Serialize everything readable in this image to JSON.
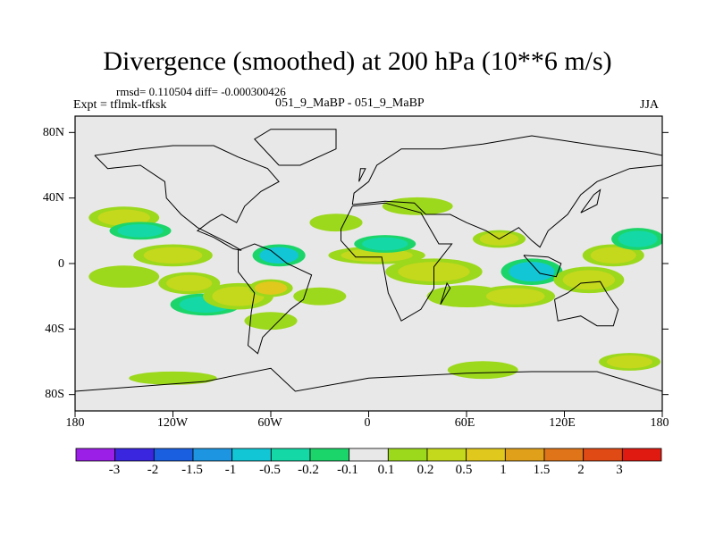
{
  "title": "Divergence (smoothed) at 200 hPa (10**6 m/s)",
  "stats_line": "rmsd= 0.110504  diff= -0.000300426",
  "expt_line": "Expt = tflmk-tfksk",
  "runs_line": "051_9_MaBP - 051_9_MaBP",
  "season": "JJA",
  "map": {
    "projection": "cylindrical equidistant",
    "lon_range": [
      -180,
      180
    ],
    "lat_range": [
      -90,
      90
    ],
    "y_ticks": [
      {
        "value": 80,
        "label": "80N"
      },
      {
        "value": 40,
        "label": "40N"
      },
      {
        "value": 0,
        "label": "0"
      },
      {
        "value": -40,
        "label": "40S"
      },
      {
        "value": -80,
        "label": "80S"
      }
    ],
    "x_ticks": [
      {
        "value": -180,
        "label": "180"
      },
      {
        "value": -120,
        "label": "120W"
      },
      {
        "value": -60,
        "label": "60W"
      },
      {
        "value": 0,
        "label": "0"
      },
      {
        "value": 60,
        "label": "60E"
      },
      {
        "value": 120,
        "label": "120E"
      },
      {
        "value": 180,
        "label": "180"
      }
    ],
    "background_color": "#e8e8e8"
  },
  "colorbar": {
    "colors": [
      "#9b1fe6",
      "#3b26e0",
      "#1a5fe0",
      "#1e95e0",
      "#12c6d6",
      "#14d8a6",
      "#1cd56a",
      "#e8e8e8",
      "#9cd81c",
      "#c4d81c",
      "#e0c81c",
      "#e0a01a",
      "#e07418",
      "#e04a14",
      "#e01a10"
    ],
    "labels": [
      "-3",
      "-2",
      "-1.5",
      "-1",
      "-0.5",
      "-0.2",
      "-0.1",
      "0.1",
      "0.2",
      "0.5",
      "1",
      "1.5",
      "2",
      "3"
    ]
  },
  "chart_data": {
    "type": "heatmap",
    "variable": "Divergence (smoothed) at 200 hPa",
    "units": "10**6 m/s",
    "levels": [
      -3,
      -2,
      -1.5,
      -1,
      -0.5,
      -0.2,
      -0.1,
      0.1,
      0.2,
      0.5,
      1,
      1.5,
      2,
      3
    ],
    "features": [
      {
        "lon": -150,
        "lat": 28,
        "value": 0.5,
        "rx": 16,
        "ry": 5
      },
      {
        "lon": -140,
        "lat": 20,
        "value": -0.2,
        "rx": 14,
        "ry": 4
      },
      {
        "lon": -120,
        "lat": 5,
        "value": 0.5,
        "rx": 18,
        "ry": 5
      },
      {
        "lon": -150,
        "lat": -8,
        "value": 0.2,
        "rx": 16,
        "ry": 5
      },
      {
        "lon": -110,
        "lat": -12,
        "value": 0.5,
        "rx": 14,
        "ry": 5
      },
      {
        "lon": -100,
        "lat": -25,
        "value": -0.2,
        "rx": 16,
        "ry": 5
      },
      {
        "lon": -80,
        "lat": -20,
        "value": 0.5,
        "rx": 16,
        "ry": 6
      },
      {
        "lon": -60,
        "lat": -15,
        "value": 1.0,
        "rx": 10,
        "ry": 4
      },
      {
        "lon": -60,
        "lat": -35,
        "value": 0.2,
        "rx": 12,
        "ry": 4
      },
      {
        "lon": -55,
        "lat": 5,
        "value": -0.5,
        "rx": 12,
        "ry": 5
      },
      {
        "lon": -30,
        "lat": -20,
        "value": 0.2,
        "rx": 12,
        "ry": 4
      },
      {
        "lon": 5,
        "lat": 5,
        "value": 0.5,
        "rx": 22,
        "ry": 4
      },
      {
        "lon": 10,
        "lat": 12,
        "value": -0.2,
        "rx": 14,
        "ry": 4
      },
      {
        "lon": 40,
        "lat": -5,
        "value": 0.5,
        "rx": 22,
        "ry": 6
      },
      {
        "lon": 60,
        "lat": -20,
        "value": 0.2,
        "rx": 18,
        "ry": 5
      },
      {
        "lon": 90,
        "lat": -20,
        "value": 0.5,
        "rx": 18,
        "ry": 5
      },
      {
        "lon": 100,
        "lat": -5,
        "value": -0.5,
        "rx": 14,
        "ry": 6
      },
      {
        "lon": 135,
        "lat": -10,
        "value": 0.5,
        "rx": 16,
        "ry": 6
      },
      {
        "lon": 150,
        "lat": 5,
        "value": 0.5,
        "rx": 14,
        "ry": 5
      },
      {
        "lon": 165,
        "lat": 15,
        "value": -0.2,
        "rx": 12,
        "ry": 5
      },
      {
        "lon": 30,
        "lat": 35,
        "value": 0.2,
        "rx": 16,
        "ry": 4
      },
      {
        "lon": -20,
        "lat": 25,
        "value": 0.2,
        "rx": 12,
        "ry": 4
      },
      {
        "lon": 80,
        "lat": 15,
        "value": 0.5,
        "rx": 12,
        "ry": 4
      },
      {
        "lon": -120,
        "lat": -70,
        "value": 0.2,
        "rx": 20,
        "ry": 3
      },
      {
        "lon": 70,
        "lat": -65,
        "value": 0.2,
        "rx": 16,
        "ry": 4
      },
      {
        "lon": 160,
        "lat": -60,
        "value": 0.5,
        "rx": 14,
        "ry": 4
      }
    ]
  }
}
